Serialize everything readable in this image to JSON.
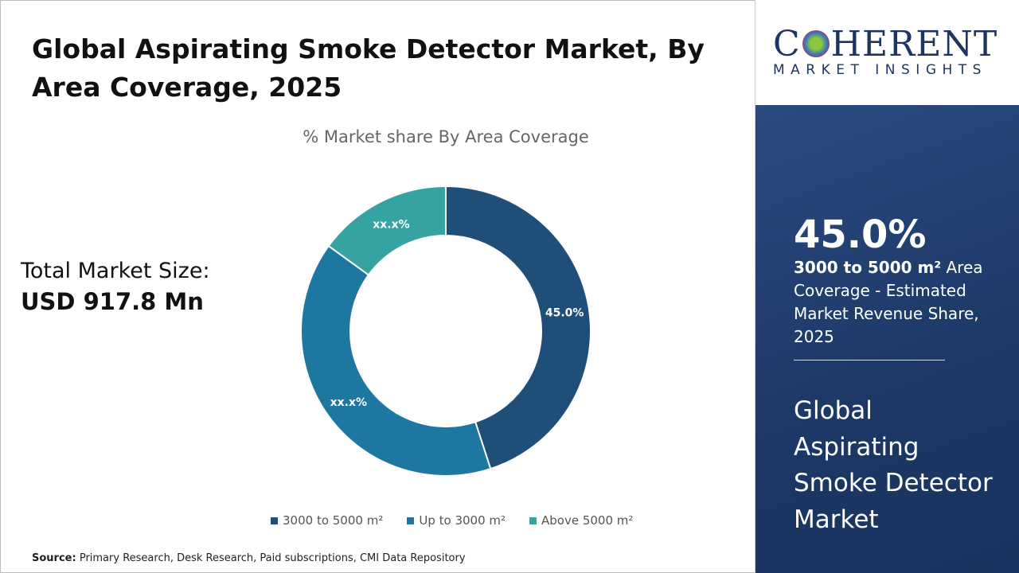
{
  "title": "Global Aspirating Smoke Detector Market, By Area Coverage, 2025",
  "total_market": {
    "label": "Total Market Size:",
    "value": "USD 917.8 Mn"
  },
  "source": {
    "label": "Source:",
    "text": "Primary Research, Desk Research, Paid subscriptions, CMI Data Repository"
  },
  "logo": {
    "main": "COHERENT",
    "sub": "MARKET INSIGHTS"
  },
  "highlight": {
    "value": "45.0%",
    "segment": "3000 to 5000 m²",
    "description": "Area Coverage - Estimated Market Revenue Share, 2025",
    "market_name": "Global Aspirating Smoke Detector Market"
  },
  "chart_data": {
    "type": "pie",
    "variant": "donut",
    "title": "% Market share By Area Coverage",
    "categories": [
      "3000 to 5000 m²",
      "Up to 3000 m²",
      "Above 5000 m²"
    ],
    "values": [
      45.0,
      40.0,
      15.0
    ],
    "data_labels": [
      "45.0%",
      "xx.x%",
      "xx.x%"
    ],
    "colors": [
      "#1f4e79",
      "#1e77a0",
      "#36a3a3"
    ],
    "legend_position": "bottom"
  }
}
